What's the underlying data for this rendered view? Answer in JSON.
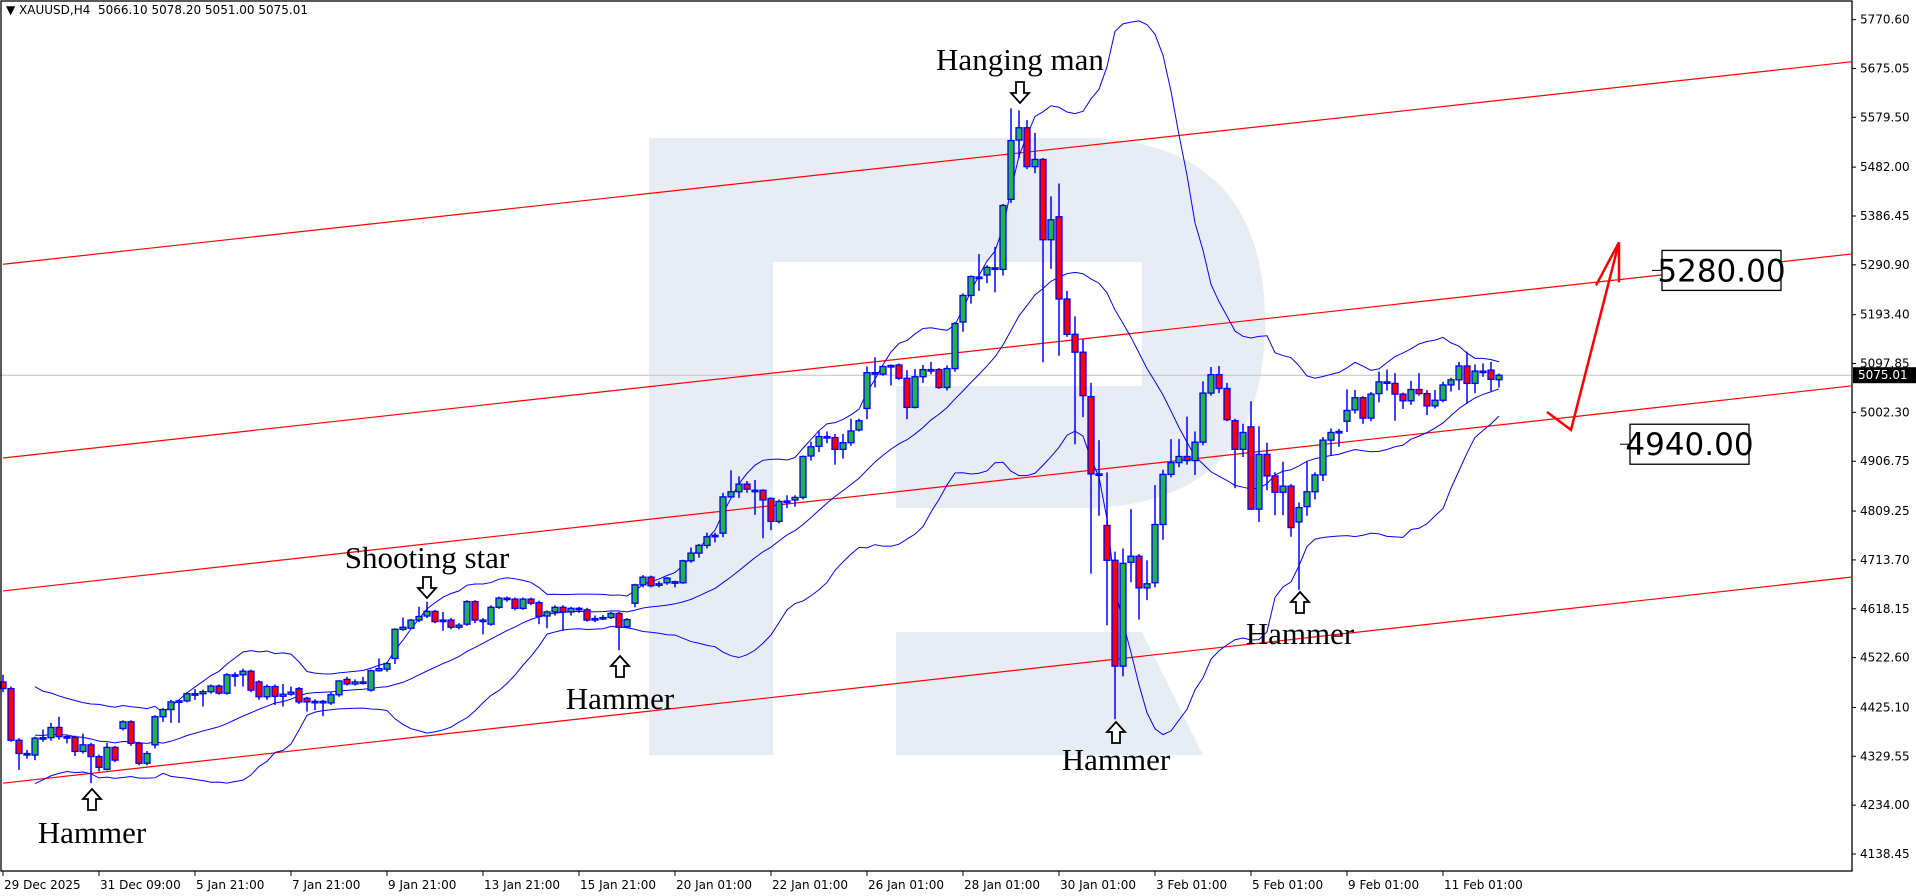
{
  "header": {
    "symbol": "XAUUSD,H4",
    "open": "5066.10",
    "high": "5078.20",
    "low": "5051.00",
    "close": "5075.01"
  },
  "colors": {
    "bull": "#22b14c",
    "bear": "#ff0000",
    "candle_outline": "#0000ff",
    "bollinger": "#0000ff",
    "channel": "#ff0000",
    "watermark": "#e8edf5",
    "current_price_line": "#c0c0c0"
  },
  "chart_data": {
    "type": "candlestick",
    "symbol": "XAUUSD",
    "timeframe": "H4",
    "ylim": [
      4138.45,
      5770.6
    ],
    "y_ticks": [
      "5770.60",
      "5675.05",
      "5579.50",
      "5482.00",
      "5386.45",
      "5290.90",
      "5193.40",
      "5097.85",
      "5002.30",
      "4906.75",
      "4809.25",
      "4713.70",
      "4618.15",
      "4522.60",
      "4425.10",
      "4329.55",
      "4234.00",
      "4138.45"
    ],
    "x_ticks": [
      {
        "bar": 0,
        "label": "29 Dec 2025"
      },
      {
        "bar": 12,
        "label": "31 Dec 09:00"
      },
      {
        "bar": 24,
        "label": "5 Jan 21:00"
      },
      {
        "bar": 36,
        "label": "7 Jan 21:00"
      },
      {
        "bar": 48,
        "label": "9 Jan 21:00"
      },
      {
        "bar": 60,
        "label": "13 Jan 21:00"
      },
      {
        "bar": 72,
        "label": "15 Jan 21:00"
      },
      {
        "bar": 84,
        "label": "20 Jan 01:00"
      },
      {
        "bar": 96,
        "label": "22 Jan 01:00"
      },
      {
        "bar": 108,
        "label": "26 Jan 01:00"
      },
      {
        "bar": 120,
        "label": "28 Jan 01:00"
      },
      {
        "bar": 132,
        "label": "30 Jan 01:00"
      },
      {
        "bar": 144,
        "label": "3 Feb 01:00"
      },
      {
        "bar": 156,
        "label": "5 Feb 01:00"
      },
      {
        "bar": 168,
        "label": "9 Feb 01:00"
      },
      {
        "bar": 180,
        "label": "11 Feb 01:00"
      }
    ],
    "current_price": "5075.01",
    "indicators": [
      {
        "type": "bollinger",
        "period": 20,
        "deviation": 2
      }
    ],
    "candles_ohlc": [
      [
        4475,
        4489,
        4455,
        4462
      ],
      [
        4462,
        4466,
        4358,
        4361
      ],
      [
        4361,
        4365,
        4303,
        4335
      ],
      [
        4335,
        4342,
        4325,
        4332
      ],
      [
        4332,
        4368,
        4322,
        4365
      ],
      [
        4365,
        4382,
        4358,
        4366
      ],
      [
        4366,
        4395,
        4360,
        4386
      ],
      [
        4386,
        4407,
        4362,
        4368
      ],
      [
        4368,
        4372,
        4355,
        4367
      ],
      [
        4367,
        4370,
        4330,
        4339
      ],
      [
        4339,
        4374,
        4335,
        4352
      ],
      [
        4352,
        4356,
        4277,
        4329
      ],
      [
        4329,
        4333,
        4300,
        4308
      ],
      [
        4304,
        4356,
        4302,
        4347
      ],
      [
        4347,
        4350,
        4318,
        4322
      ],
      [
        4384,
        4400,
        4380,
        4397
      ],
      [
        4397,
        4400,
        4350,
        4355
      ],
      [
        4355,
        4358,
        4312,
        4316
      ],
      [
        4316,
        4340,
        4312,
        4335
      ],
      [
        4352,
        4410,
        4345,
        4407
      ],
      [
        4407,
        4424,
        4397,
        4421
      ],
      [
        4421,
        4440,
        4395,
        4436
      ],
      [
        4436,
        4440,
        4395,
        4438
      ],
      [
        4438,
        4455,
        4435,
        4452
      ],
      [
        4452,
        4461,
        4440,
        4452
      ],
      [
        4452,
        4460,
        4427,
        4456
      ],
      [
        4456,
        4470,
        4452,
        4467
      ],
      [
        4467,
        4470,
        4450,
        4453
      ],
      [
        4453,
        4492,
        4450,
        4489
      ],
      [
        4489,
        4494,
        4466,
        4489
      ],
      [
        4489,
        4501,
        4466,
        4496
      ],
      [
        4496,
        4499,
        4455,
        4459
      ],
      [
        4475,
        4478,
        4440,
        4446
      ],
      [
        4446,
        4470,
        4440,
        4466
      ],
      [
        4466,
        4470,
        4430,
        4447
      ],
      [
        4447,
        4471,
        4427,
        4451
      ],
      [
        4451,
        4466,
        4448,
        4455
      ],
      [
        4462,
        4465,
        4432,
        4436
      ],
      [
        4443,
        4446,
        4417,
        4436
      ],
      [
        4436,
        4441,
        4420,
        4437
      ],
      [
        4437,
        4440,
        4408,
        4437
      ],
      [
        4434,
        4455,
        4430,
        4450
      ],
      [
        4450,
        4478,
        4446,
        4477
      ],
      [
        4480,
        4485,
        4468,
        4471
      ],
      [
        4471,
        4480,
        4468,
        4475
      ],
      [
        4475,
        4485,
        4470,
        4475
      ],
      [
        4459,
        4499,
        4456,
        4497
      ],
      [
        4497,
        4521,
        4495,
        4501
      ],
      [
        4500,
        4514,
        4495,
        4511
      ],
      [
        4521,
        4580,
        4510,
        4578
      ],
      [
        4578,
        4601,
        4575,
        4582
      ],
      [
        4580,
        4598,
        4578,
        4596
      ],
      [
        4596,
        4622,
        4592,
        4603
      ],
      [
        4604,
        4632,
        4600,
        4613
      ],
      [
        4613,
        4616,
        4590,
        4593
      ],
      [
        4596,
        4612,
        4575,
        4596
      ],
      [
        4596,
        4600,
        4578,
        4582
      ],
      [
        4582,
        4590,
        4578,
        4586
      ],
      [
        4588,
        4635,
        4585,
        4632
      ],
      [
        4632,
        4635,
        4590,
        4596
      ],
      [
        4596,
        4600,
        4568,
        4596
      ],
      [
        4588,
        4625,
        4585,
        4621
      ],
      [
        4621,
        4642,
        4618,
        4639
      ],
      [
        4639,
        4642,
        4632,
        4637
      ],
      [
        4637,
        4640,
        4615,
        4619
      ],
      [
        4619,
        4640,
        4616,
        4637
      ],
      [
        4637,
        4640,
        4625,
        4629
      ],
      [
        4630,
        4634,
        4588,
        4603
      ],
      [
        4604,
        4615,
        4580,
        4612
      ],
      [
        4612,
        4625,
        4605,
        4621
      ],
      [
        4621,
        4625,
        4575,
        4612
      ],
      [
        4612,
        4622,
        4605,
        4619
      ],
      [
        4619,
        4622,
        4610,
        4616
      ],
      [
        4616,
        4620,
        4593,
        4596
      ],
      [
        4596,
        4605,
        4592,
        4599
      ],
      [
        4599,
        4606,
        4596,
        4601
      ],
      [
        4601,
        4612,
        4598,
        4609
      ],
      [
        4609,
        4612,
        4537,
        4582
      ],
      [
        4583,
        4600,
        4580,
        4597
      ],
      [
        4629,
        4667,
        4621,
        4665
      ],
      [
        4665,
        4684,
        4660,
        4680
      ],
      [
        4680,
        4683,
        4660,
        4663
      ],
      [
        4667,
        4672,
        4660,
        4667
      ],
      [
        4669,
        4680,
        4665,
        4678
      ],
      [
        4671,
        4673,
        4660,
        4671
      ],
      [
        4669,
        4714,
        4667,
        4712
      ],
      [
        4712,
        4738,
        4708,
        4727
      ],
      [
        4727,
        4745,
        4718,
        4742
      ],
      [
        4742,
        4767,
        4736,
        4759
      ],
      [
        4762,
        4767,
        4748,
        4762
      ],
      [
        4766,
        4845,
        4758,
        4837
      ],
      [
        4837,
        4889,
        4835,
        4847
      ],
      [
        4847,
        4877,
        4835,
        4862
      ],
      [
        4862,
        4868,
        4845,
        4852
      ],
      [
        4850,
        4870,
        4802,
        4850
      ],
      [
        4850,
        4852,
        4756,
        4831
      ],
      [
        4834,
        4836,
        4772,
        4789
      ],
      [
        4789,
        4832,
        4785,
        4828
      ],
      [
        4829,
        4840,
        4815,
        4829
      ],
      [
        4831,
        4840,
        4818,
        4836
      ],
      [
        4836,
        4918,
        4832,
        4916
      ],
      [
        4917,
        4945,
        4908,
        4935
      ],
      [
        4936,
        4965,
        4925,
        4955
      ],
      [
        4955,
        4965,
        4942,
        4955
      ],
      [
        4953,
        4960,
        4900,
        4930
      ],
      [
        4930,
        4960,
        4912,
        4943
      ],
      [
        4943,
        4990,
        4937,
        4966
      ],
      [
        4968,
        4990,
        4965,
        4986
      ],
      [
        5010,
        5092,
        4989,
        5080
      ],
      [
        5080,
        5110,
        5051,
        5080
      ],
      [
        5077,
        5094,
        5074,
        5092
      ],
      [
        5094,
        5096,
        5055,
        5094
      ],
      [
        5095,
        5098,
        5066,
        5069
      ],
      [
        5069,
        5085,
        4989,
        5012
      ],
      [
        5012,
        5087,
        5010,
        5072
      ],
      [
        5072,
        5095,
        5060,
        5086
      ],
      [
        5086,
        5101,
        5077,
        5086
      ],
      [
        5086,
        5089,
        5048,
        5051
      ],
      [
        5051,
        5094,
        5045,
        5088
      ],
      [
        5088,
        5179,
        5082,
        5176
      ],
      [
        5179,
        5235,
        5160,
        5231
      ],
      [
        5231,
        5270,
        5215,
        5268
      ],
      [
        5267,
        5312,
        5240,
        5267
      ],
      [
        5271,
        5290,
        5255,
        5286
      ],
      [
        5285,
        5326,
        5237,
        5285
      ],
      [
        5282,
        5410,
        5270,
        5407
      ],
      [
        5419,
        5597,
        5412,
        5534
      ],
      [
        5535,
        5593,
        5500,
        5559
      ],
      [
        5559,
        5574,
        5478,
        5483
      ],
      [
        5483,
        5549,
        5470,
        5497
      ],
      [
        5497,
        5500,
        5100,
        5340
      ],
      [
        5340,
        5425,
        5283,
        5379
      ],
      [
        5385,
        5450,
        5113,
        5224
      ],
      [
        5224,
        5240,
        5150,
        5155
      ],
      [
        5155,
        5190,
        4940,
        5120
      ],
      [
        5120,
        5145,
        4993,
        5035
      ],
      [
        5033,
        5060,
        4687,
        4882
      ],
      [
        4882,
        4948,
        4800,
        4882
      ],
      [
        4781,
        4885,
        4586,
        4713
      ],
      [
        4713,
        4730,
        4402,
        4506
      ],
      [
        4506,
        4736,
        4486,
        4707
      ],
      [
        4709,
        4813,
        4670,
        4721
      ],
      [
        4721,
        4725,
        4597,
        4659
      ],
      [
        4659,
        4713,
        4635,
        4667
      ],
      [
        4669,
        4860,
        4660,
        4783
      ],
      [
        4783,
        4890,
        4753,
        4881
      ],
      [
        4881,
        4950,
        4875,
        4904
      ],
      [
        4904,
        4950,
        4895,
        4916
      ],
      [
        4916,
        4994,
        4900,
        4908
      ],
      [
        4908,
        4965,
        4880,
        4944
      ],
      [
        4944,
        5063,
        4938,
        5040
      ],
      [
        5040,
        5091,
        5035,
        5076
      ],
      [
        5076,
        5093,
        5040,
        5049
      ],
      [
        5049,
        5060,
        4985,
        4988
      ],
      [
        4986,
        4990,
        4854,
        4930
      ],
      [
        4930,
        4980,
        4915,
        4963
      ],
      [
        4974,
        5024,
        4812,
        4813
      ],
      [
        4813,
        4975,
        4788,
        4920
      ],
      [
        4920,
        4943,
        4850,
        4878
      ],
      [
        4878,
        4885,
        4801,
        4846
      ],
      [
        4846,
        4906,
        4801,
        4858
      ],
      [
        4858,
        4862,
        4759,
        4777
      ],
      [
        4788,
        4826,
        4655,
        4816
      ],
      [
        4818,
        4906,
        4800,
        4847
      ],
      [
        4847,
        4885,
        4832,
        4880
      ],
      [
        4880,
        4954,
        4868,
        4948
      ],
      [
        4948,
        4971,
        4919,
        4963
      ],
      [
        4965,
        4970,
        4935,
        4965
      ],
      [
        4985,
        5047,
        4964,
        5006
      ],
      [
        5007,
        5046,
        5000,
        5031
      ],
      [
        5031,
        5034,
        4980,
        4991
      ],
      [
        4991,
        5042,
        4985,
        5038
      ],
      [
        5039,
        5082,
        5022,
        5062
      ],
      [
        5062,
        5086,
        5045,
        5062
      ],
      [
        5059,
        5079,
        4986,
        5038
      ],
      [
        5038,
        5041,
        5009,
        5025
      ],
      [
        5025,
        5064,
        5017,
        5047
      ],
      [
        5047,
        5079,
        5035,
        5039
      ],
      [
        5039,
        5046,
        4997,
        5015
      ],
      [
        5015,
        5046,
        5010,
        5026
      ],
      [
        5026,
        5062,
        5022,
        5056
      ],
      [
        5056,
        5070,
        5043,
        5066
      ],
      [
        5066,
        5101,
        5046,
        5093
      ],
      [
        5093,
        5121,
        5019,
        5059
      ],
      [
        5059,
        5096,
        5040,
        5083
      ],
      [
        5083,
        5098,
        5072,
        5083
      ],
      [
        5085,
        5101,
        5044,
        5067
      ],
      [
        5066.1,
        5078.2,
        5051.0,
        5075.01
      ]
    ],
    "channel_lines": [
      {
        "from": {
          "bar": 0,
          "price": 5292
        },
        "to": {
          "bar": 231,
          "price": 5688
        }
      },
      {
        "from": {
          "bar": 0,
          "price": 4913
        },
        "to": {
          "bar": 231,
          "price": 5312
        }
      },
      {
        "from": {
          "bar": 0,
          "price": 4653
        },
        "to": {
          "bar": 231,
          "price": 5054
        }
      },
      {
        "from": {
          "bar": 0,
          "price": 4277
        },
        "to": {
          "bar": 231,
          "price": 4680
        }
      }
    ],
    "forecast_path": [
      {
        "bar": 193,
        "price": 5003
      },
      {
        "bar": 196,
        "price": 4968
      },
      {
        "bar": 202,
        "price": 5335
      }
    ],
    "levels": [
      {
        "label": "5280.00",
        "price": 5280
      },
      {
        "label": "4940.00",
        "price": 4940
      }
    ],
    "annotations": [
      {
        "text": "Hanging man",
        "direction": "down",
        "bar": 127
      },
      {
        "text": "Shooting star",
        "direction": "down",
        "bar": 53
      },
      {
        "text": "Hammer",
        "direction": "up",
        "bar": 11
      },
      {
        "text": "Hammer",
        "direction": "up",
        "bar": 77
      },
      {
        "text": "Hammer",
        "direction": "up",
        "bar": 139
      },
      {
        "text": "Hammer",
        "direction": "up",
        "bar": 162
      }
    ]
  }
}
